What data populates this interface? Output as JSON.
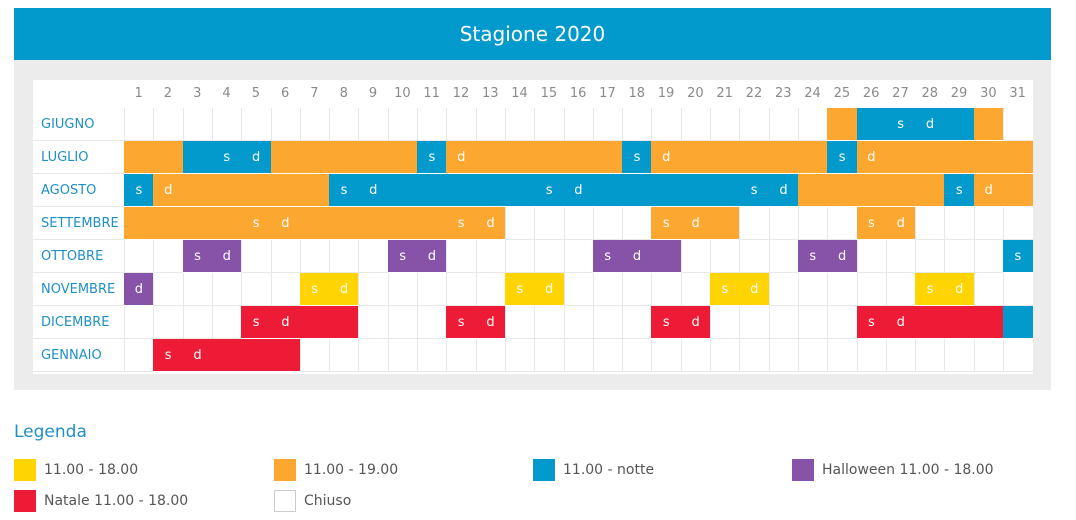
{
  "title": "Stagione 2020",
  "days": [
    "1",
    "2",
    "3",
    "4",
    "5",
    "6",
    "7",
    "8",
    "9",
    "10",
    "11",
    "12",
    "13",
    "14",
    "15",
    "16",
    "17",
    "18",
    "19",
    "20",
    "21",
    "22",
    "23",
    "24",
    "25",
    "26",
    "27",
    "28",
    "29",
    "30",
    "31"
  ],
  "colors": {
    "yellow": "#ffd400",
    "orange": "#fca72f",
    "blue": "#0299cc",
    "purple": "#8753a9",
    "red": "#ee1b36",
    "white": "#ffffff"
  },
  "months": [
    {
      "name": "GIUGNO",
      "cells": [
        "w",
        "w",
        "w",
        "w",
        "w",
        "w",
        "w",
        "w",
        "w",
        "w",
        "w",
        "w",
        "w",
        "w",
        "w",
        "w",
        "w",
        "w",
        "w",
        "w",
        "w",
        "w",
        "w",
        "w",
        "o",
        "b",
        "b",
        "b",
        "b",
        "o",
        "w"
      ],
      "labels": {
        "27": "s",
        "28": "d"
      }
    },
    {
      "name": "LUGLIO",
      "cells": [
        "o",
        "o",
        "b",
        "b",
        "b",
        "o",
        "o",
        "o",
        "o",
        "o",
        "b",
        "o",
        "o",
        "o",
        "o",
        "o",
        "o",
        "b",
        "o",
        "o",
        "o",
        "o",
        "o",
        "o",
        "b",
        "o",
        "o",
        "o",
        "o",
        "o",
        "o"
      ],
      "labels": {
        "4": "s",
        "5": "d",
        "11": "s",
        "12": "d",
        "18": "s",
        "19": "d",
        "25": "s",
        "26": "d"
      }
    },
    {
      "name": "AGOSTO",
      "cells": [
        "b",
        "o",
        "o",
        "o",
        "o",
        "o",
        "o",
        "b",
        "b",
        "b",
        "b",
        "b",
        "b",
        "b",
        "b",
        "b",
        "b",
        "b",
        "b",
        "b",
        "b",
        "b",
        "b",
        "o",
        "o",
        "o",
        "o",
        "o",
        "b",
        "o",
        "o"
      ],
      "labels": {
        "1": "s",
        "2": "d",
        "8": "s",
        "9": "d",
        "15": "s",
        "16": "d",
        "22": "s",
        "23": "d",
        "29": "s",
        "30": "d"
      }
    },
    {
      "name": "SETTEMBRE",
      "cells": [
        "o",
        "o",
        "o",
        "o",
        "o",
        "o",
        "o",
        "o",
        "o",
        "o",
        "o",
        "o",
        "o",
        "w",
        "w",
        "w",
        "w",
        "w",
        "o",
        "o",
        "o",
        "w",
        "w",
        "w",
        "w",
        "o",
        "o",
        "w",
        "w",
        "w",
        "w"
      ],
      "labels": {
        "5": "s",
        "6": "d",
        "12": "s",
        "13": "d",
        "19": "s",
        "20": "d",
        "26": "s",
        "27": "d"
      }
    },
    {
      "name": "OTTOBRE",
      "cells": [
        "w",
        "w",
        "p",
        "p",
        "w",
        "w",
        "w",
        "w",
        "w",
        "p",
        "p",
        "w",
        "w",
        "w",
        "w",
        "w",
        "p",
        "p",
        "p",
        "w",
        "w",
        "w",
        "w",
        "p",
        "p",
        "w",
        "w",
        "w",
        "w",
        "w",
        "b"
      ],
      "labels": {
        "3": "s",
        "4": "d",
        "10": "s",
        "11": "d",
        "17": "s",
        "18": "d",
        "24": "s",
        "25": "d",
        "31": "s"
      }
    },
    {
      "name": "NOVEMBRE",
      "cells": [
        "p",
        "w",
        "w",
        "w",
        "w",
        "w",
        "y",
        "y",
        "w",
        "w",
        "w",
        "w",
        "w",
        "y",
        "y",
        "w",
        "w",
        "w",
        "w",
        "w",
        "y",
        "y",
        "w",
        "w",
        "w",
        "w",
        "w",
        "y",
        "y",
        "w",
        "w"
      ],
      "labels": {
        "1": "d",
        "7": "s",
        "8": "d",
        "14": "s",
        "15": "d",
        "21": "s",
        "22": "d",
        "28": "s",
        "29": "d"
      }
    },
    {
      "name": "DICEMBRE",
      "cells": [
        "w",
        "w",
        "w",
        "w",
        "r",
        "r",
        "r",
        "r",
        "w",
        "w",
        "w",
        "r",
        "r",
        "w",
        "w",
        "w",
        "w",
        "w",
        "r",
        "r",
        "w",
        "w",
        "w",
        "w",
        "w",
        "r",
        "r",
        "r",
        "r",
        "r",
        "b"
      ],
      "labels": {
        "5": "s",
        "6": "d",
        "12": "s",
        "13": "d",
        "19": "s",
        "20": "d",
        "26": "s",
        "27": "d"
      }
    },
    {
      "name": "GENNAIO",
      "cells": [
        "w",
        "r",
        "r",
        "r",
        "r",
        "r",
        "w",
        "w",
        "w",
        "w",
        "w",
        "w",
        "w",
        "w",
        "w",
        "w",
        "w",
        "w",
        "w",
        "w",
        "w",
        "w",
        "w",
        "w",
        "w",
        "w",
        "w",
        "w",
        "w",
        "w",
        "w"
      ],
      "labels": {
        "2": "s",
        "3": "d"
      }
    }
  ],
  "legend": {
    "title": "Legenda",
    "items": [
      {
        "label": "11.00 - 18.00",
        "color": "#ffd400"
      },
      {
        "label": "11.00 - 19.00",
        "color": "#fca72f"
      },
      {
        "label": "11.00 - notte",
        "color": "#0299cc"
      },
      {
        "label": "Halloween 11.00 - 18.00",
        "color": "#8753a9"
      },
      {
        "label": "Natale 11.00 - 18.00",
        "color": "#ee1b36"
      },
      {
        "label": "Chiuso",
        "color": "#ffffff"
      }
    ]
  }
}
